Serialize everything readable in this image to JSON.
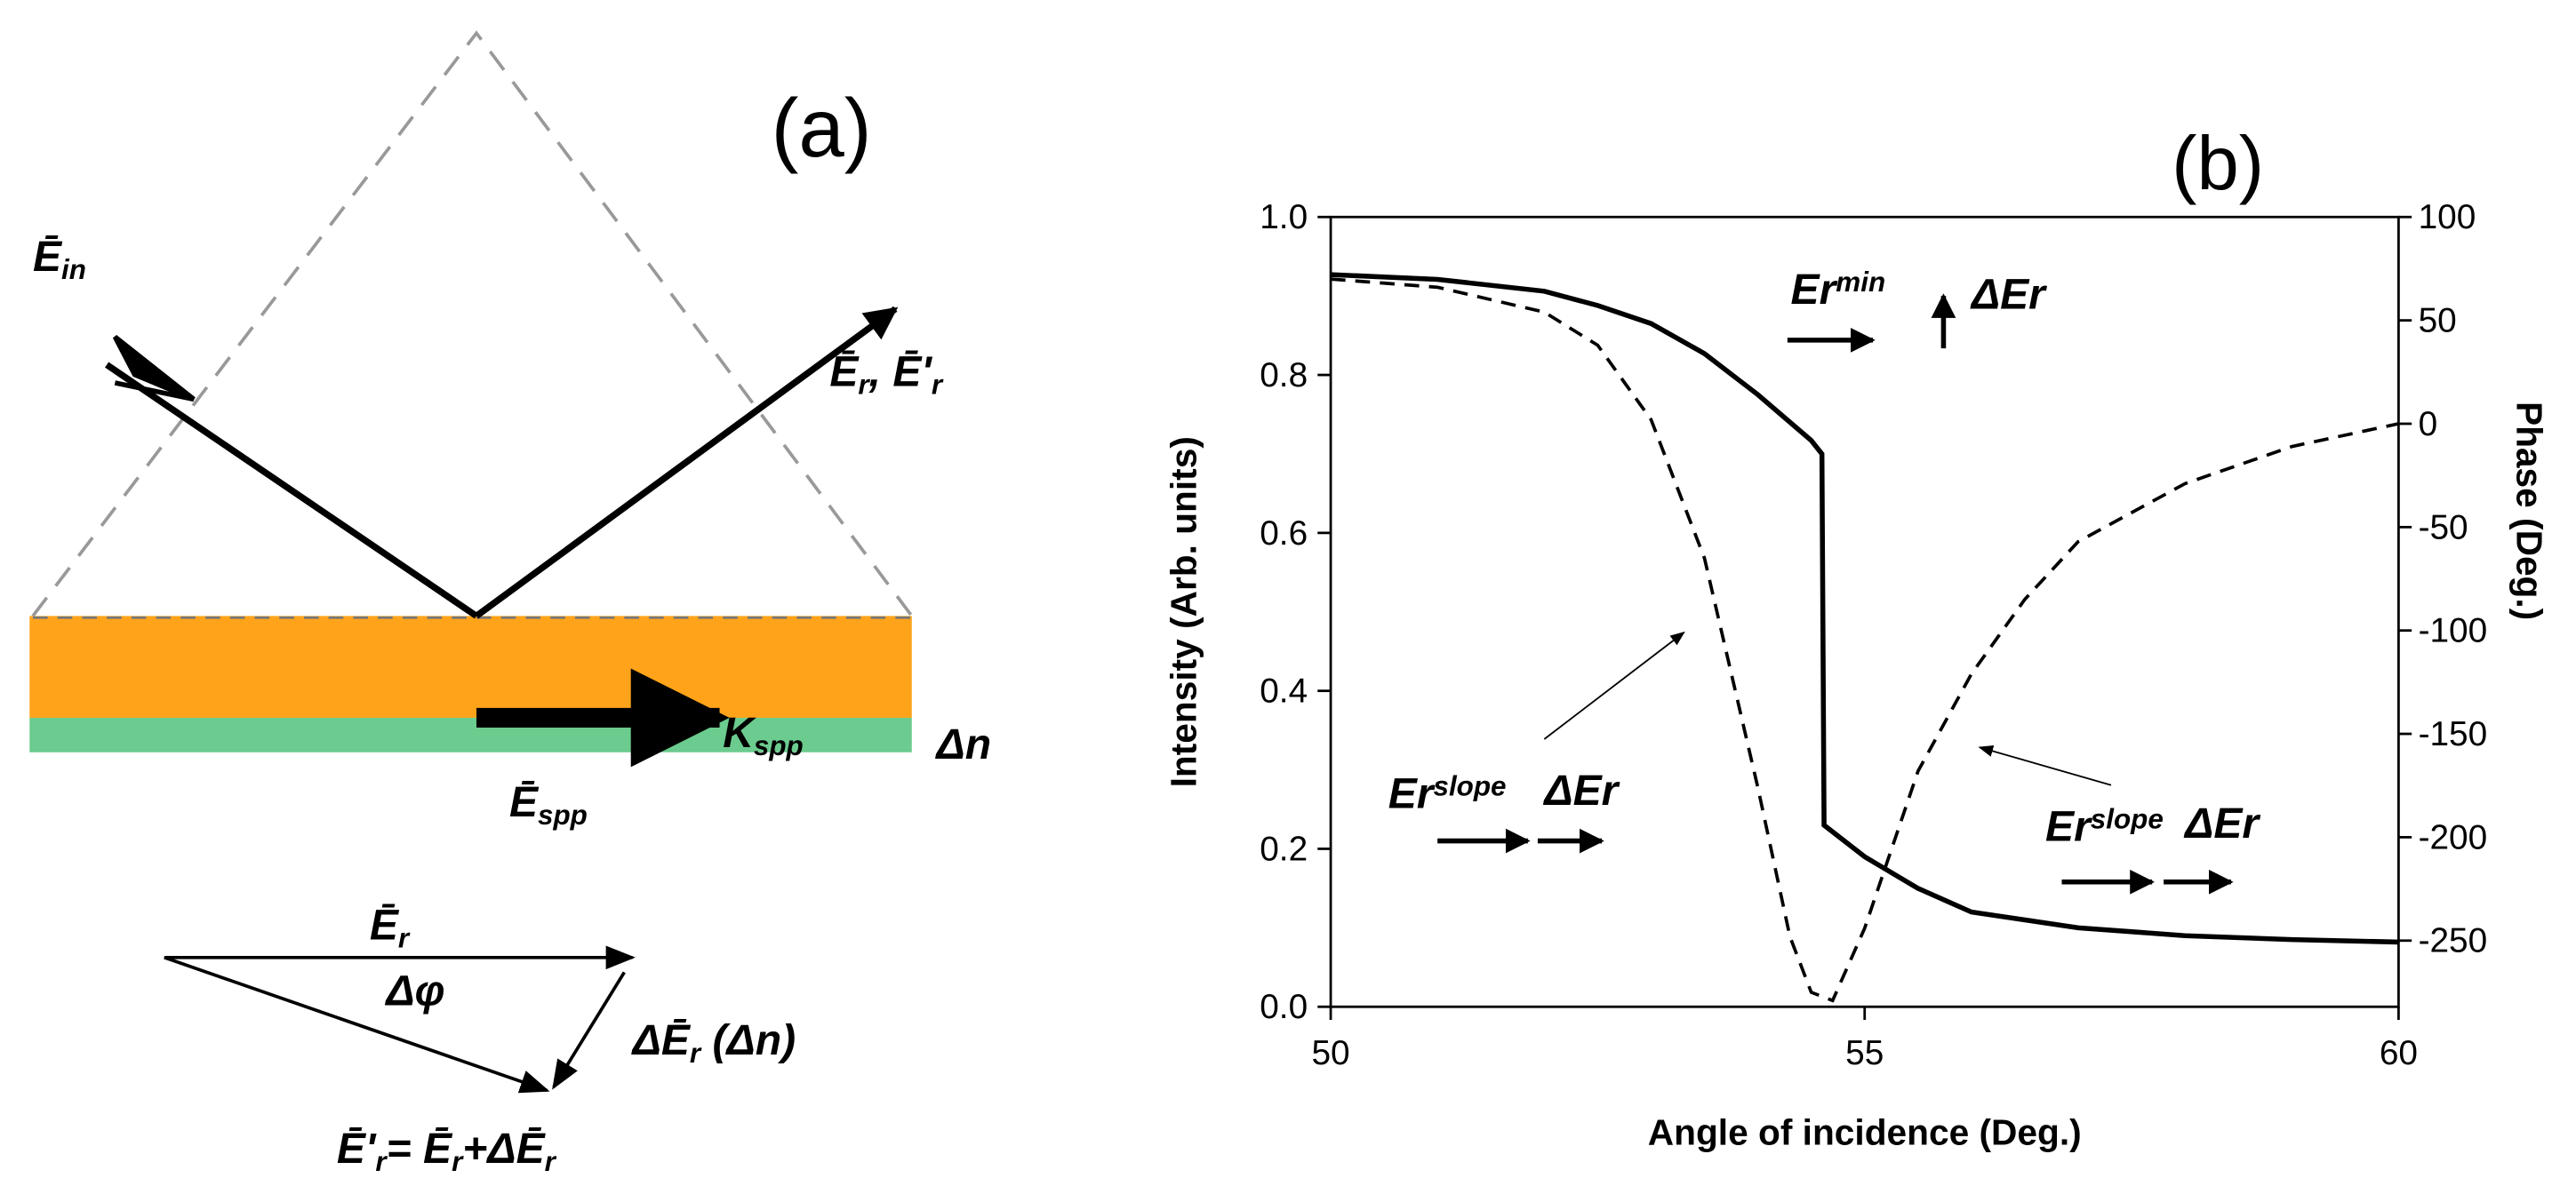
{
  "diagram": {
    "title": "(a)",
    "labels": [
      {
        "parts": [
          {
            "text": "Ē"
          },
          {
            "sub": "in"
          }
        ]
      },
      {
        "parts": [
          {
            "text": "Ē"
          },
          {
            "sub": "r"
          },
          {
            "text": ", Ē'"
          },
          {
            "sub": "r"
          }
        ]
      },
      {
        "parts": [
          {
            "text": "K"
          },
          {
            "sub": "spp"
          }
        ]
      },
      {
        "parts": [
          {
            "text": "Δn"
          }
        ]
      },
      {
        "parts": [
          {
            "text": "Ē"
          },
          {
            "sub": "spp"
          }
        ]
      },
      {
        "parts": [
          {
            "text": "Ē"
          },
          {
            "sub": "r"
          }
        ]
      },
      {
        "parts": [
          {
            "text": "Δφ"
          }
        ]
      },
      {
        "parts": [
          {
            "text": "ΔĒ"
          },
          {
            "sub": "r"
          },
          {
            "text": " (Δn)"
          }
        ]
      },
      {
        "parts": [
          {
            "text": "Ē'"
          },
          {
            "sub": "r"
          },
          {
            "text": "= Ē"
          },
          {
            "sub": "r"
          },
          {
            "text": "+ΔĒ"
          },
          {
            "sub": "r"
          }
        ]
      }
    ]
  },
  "chart_data": {
    "type": "line",
    "title": "(b)",
    "x_label": "Angle of incidence (Deg.)",
    "y_label": "Intensity (Arb. units)",
    "y2_label": "Phase (Deg.)",
    "xlim": [
      50,
      60
    ],
    "xticks": [
      50,
      55,
      60
    ],
    "ylim": [
      0,
      1
    ],
    "yticks": [
      {
        "value": 0,
        "label": "0.0"
      },
      0.2,
      0.4,
      0.6,
      0.8,
      {
        "value": 1,
        "label": "1.0"
      }
    ],
    "y2lim": [
      -282,
      100
    ],
    "y2ticks": [
      100,
      50,
      0,
      -50,
      -100,
      -150,
      -200,
      -250
    ],
    "series": [
      {
        "color": "#000000",
        "dash": false,
        "x": [
          50,
          51,
          52,
          52.5,
          53,
          53.5,
          54,
          54.5,
          54.6,
          54.62,
          55,
          55.5,
          56,
          57,
          58,
          59,
          60
        ],
        "values": [
          0.927,
          0.921,
          0.906,
          0.888,
          0.865,
          0.827,
          0.775,
          0.717,
          0.7,
          0.23,
          0.19,
          0.15,
          0.12,
          0.1,
          0.09,
          0.085,
          0.082
        ]
      },
      {
        "color": "#000000",
        "dash": true,
        "axis": "y2",
        "x": [
          50,
          51,
          52,
          52.5,
          53,
          53.5,
          54,
          54.3,
          54.5,
          54.7,
          55,
          55.5,
          56,
          56.5,
          57,
          58,
          59,
          60
        ],
        "values": [
          70,
          66,
          54,
          38,
          2,
          -65,
          -176,
          -248,
          -275,
          -279,
          -244,
          -168,
          -121,
          -85,
          -57,
          -29,
          -11,
          0
        ]
      }
    ],
    "annotations": [
      {
        "parts": [
          {
            "text": "Er"
          },
          {
            "sup": "min"
          }
        ]
      },
      {
        "parts": [
          {
            "text": "ΔEr"
          }
        ]
      },
      {
        "parts": [
          {
            "text": "Er"
          },
          {
            "sup": "slope"
          }
        ]
      },
      {
        "parts": [
          {
            "text": "ΔEr"
          }
        ]
      },
      {
        "parts": [
          {
            "text": "Er"
          },
          {
            "sup": "slope"
          }
        ]
      },
      {
        "parts": [
          {
            "text": "ΔEr"
          }
        ]
      }
    ]
  }
}
